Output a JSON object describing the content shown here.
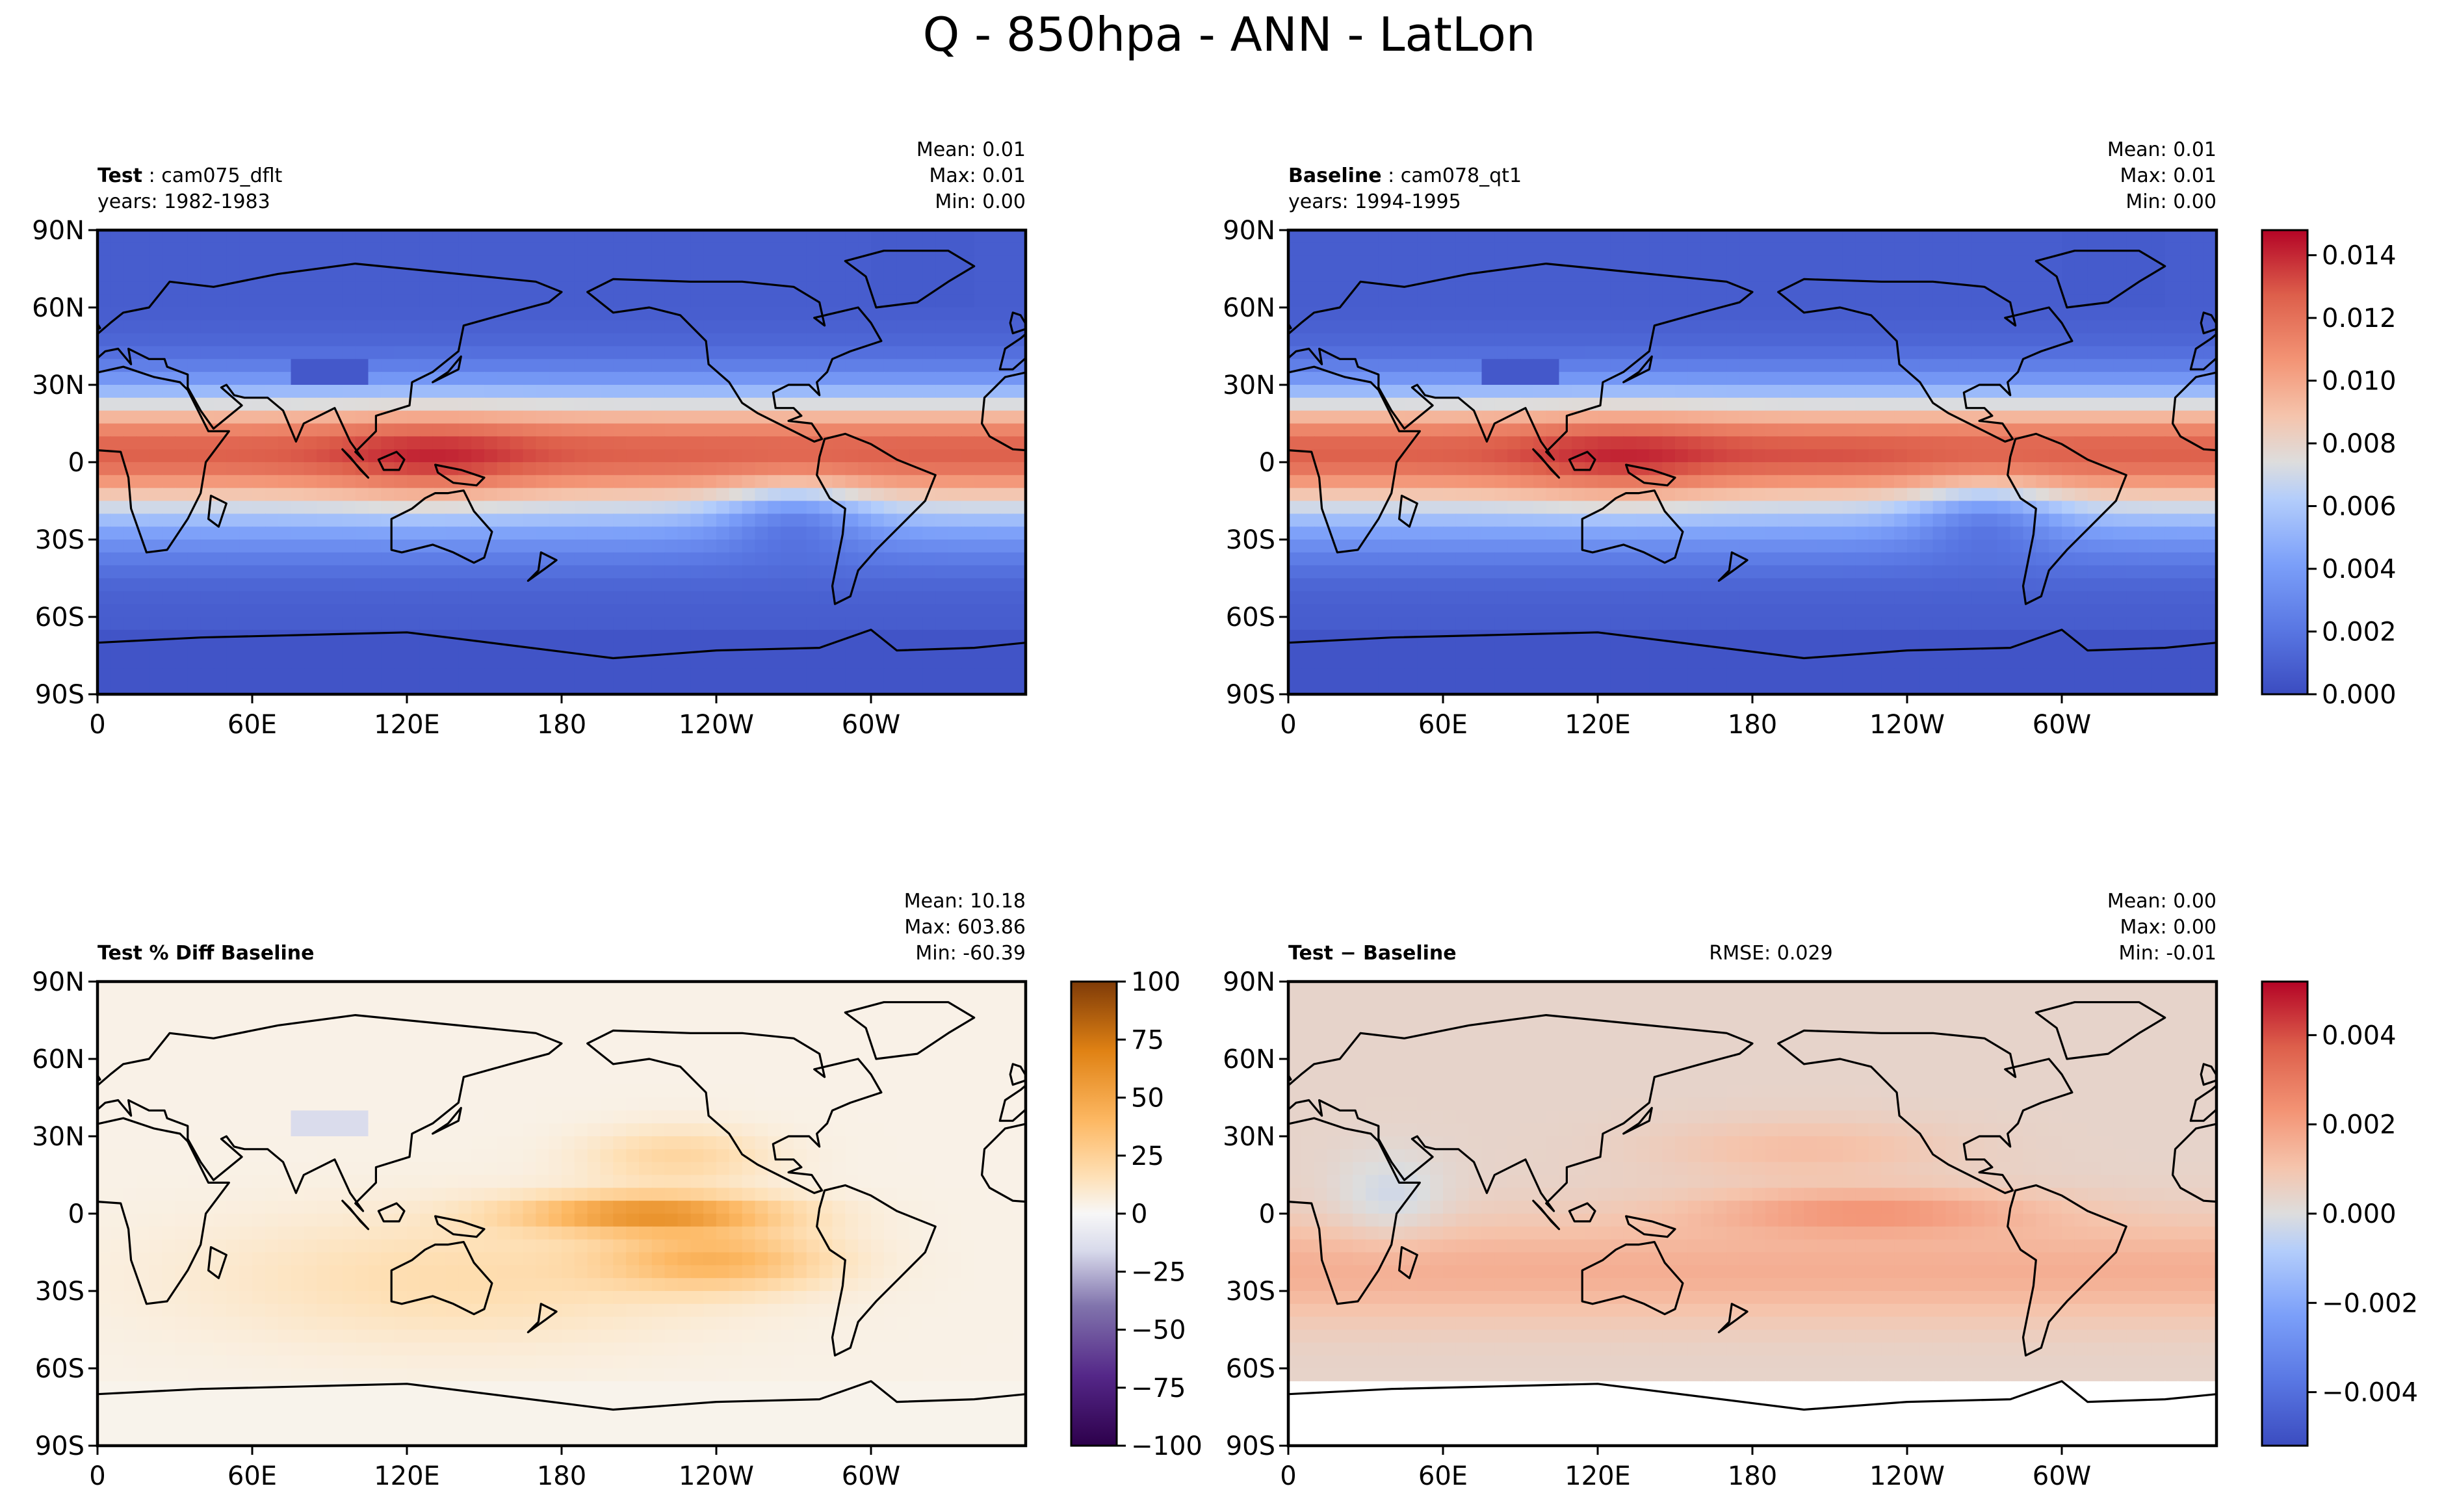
{
  "chart_data": [
    {
      "type": "heatmap",
      "title": "Q - 850hpa - ANN - LatLon",
      "panels": [
        {
          "id": "test",
          "label_bold": "Test",
          "label_rest": "cam075_dflt",
          "years": "years: 1982-1983",
          "stats": [
            "Mean:  0.01",
            "Max:  0.01",
            "Min:  0.00"
          ],
          "colormap": "coolwarm",
          "value_range": [
            0,
            0.0148
          ],
          "xticks": [
            "0",
            "60E",
            "120E",
            "180",
            "120W",
            "60W"
          ],
          "yticks": [
            "90N",
            "60N",
            "30N",
            "0",
            "30S",
            "60S",
            "90S"
          ]
        },
        {
          "id": "baseline",
          "label_bold": "Baseline",
          "label_rest": "cam078_qt1",
          "years": "years: 1994-1995",
          "stats": [
            "Mean:  0.01",
            "Max:  0.01",
            "Min:  0.00"
          ],
          "colormap": "coolwarm",
          "value_range": [
            0,
            0.0148
          ],
          "xticks": [
            "0",
            "60E",
            "120E",
            "180",
            "120W",
            "60W"
          ],
          "yticks": [
            "90N",
            "60N",
            "30N",
            "0",
            "30S",
            "60S",
            "90S"
          ],
          "colorbar": {
            "range": [
              0,
              0.0148
            ],
            "ticks": [
              "0.000",
              "0.002",
              "0.004",
              "0.006",
              "0.008",
              "0.010",
              "0.012",
              "0.014"
            ]
          }
        },
        {
          "id": "pctdiff",
          "label_bold": "Test % Diff Baseline",
          "stats": [
            "Mean: 10.18",
            "Max: 603.86",
            "Min: -60.39"
          ],
          "colormap": "PuOr_r",
          "value_range": [
            -100,
            100
          ],
          "xticks": [
            "0",
            "60E",
            "120E",
            "180",
            "120W",
            "60W"
          ],
          "yticks": [
            "90N",
            "60N",
            "30N",
            "0",
            "30S",
            "60S",
            "90S"
          ],
          "colorbar": {
            "range": [
              -100,
              100
            ],
            "ticks": [
              "100",
              "75",
              "50",
              "25",
              "0",
              "−25",
              "−50",
              "−75",
              "−100"
            ]
          }
        },
        {
          "id": "diff",
          "label_bold": "Test − Baseline",
          "rmse": "RMSE: 0.029",
          "stats": [
            "Mean:  0.00",
            "Max:  0.00",
            "Min: -0.01"
          ],
          "colormap": "coolwarm",
          "value_range": [
            -0.0052,
            0.0052
          ],
          "xticks": [
            "0",
            "60E",
            "120E",
            "180",
            "120W",
            "60W"
          ],
          "yticks": [
            "90N",
            "60N",
            "30N",
            "0",
            "30S",
            "60S",
            "90S"
          ],
          "colorbar": {
            "range": [
              -0.0052,
              0.0052
            ],
            "ticks": [
              "0.004",
              "0.002",
              "0.000",
              "−0.002",
              "−0.004"
            ]
          }
        }
      ]
    }
  ],
  "colors": {
    "coolwarm_low": "#3b4cc0",
    "coolwarm_mid": "#dddddd",
    "coolwarm_high": "#b40426",
    "puor_low": "#2d004b",
    "puor_mid": "#f7f7f7",
    "puor_high": "#7f3b08"
  }
}
